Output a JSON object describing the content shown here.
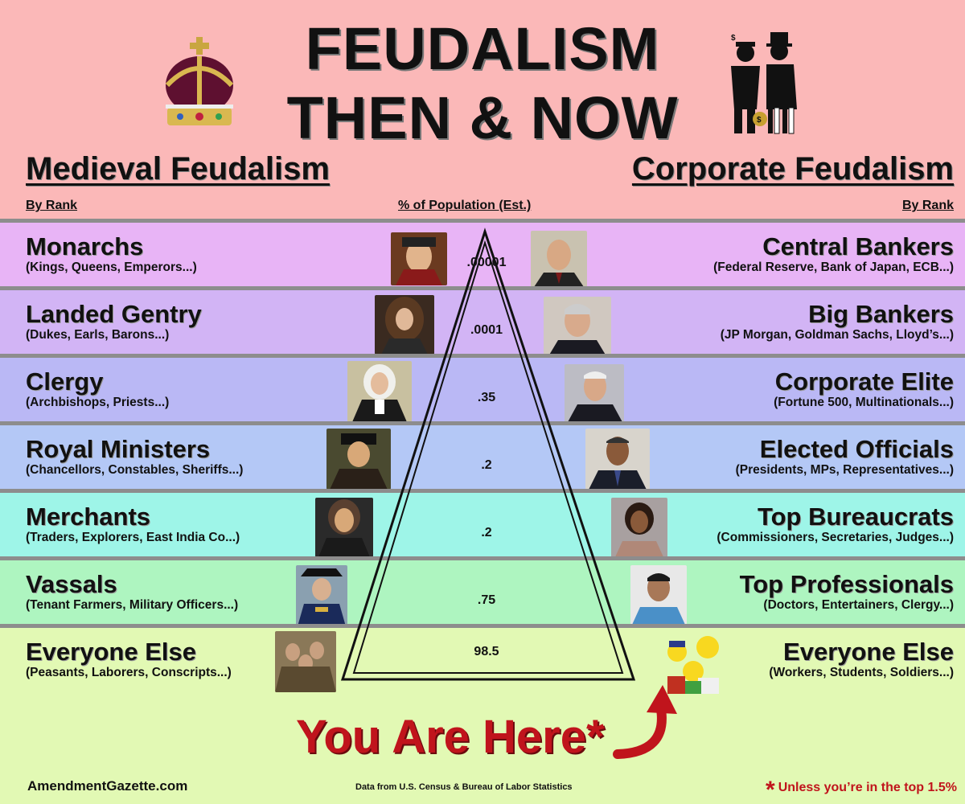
{
  "title": {
    "line1": "FEUDALISM",
    "line2": "THEN & NOW"
  },
  "columns": {
    "left_heading": "Medieval Feudalism",
    "right_heading": "Corporate Feudalism",
    "left_sub": "By Rank",
    "middle_sub": "% of Population (Est.)",
    "right_sub": "By Rank"
  },
  "ranks": [
    {
      "medieval": "Monarchs",
      "medieval_examples": "(Kings, Queens, Emperors...)",
      "percent": ".00001",
      "corporate": "Central Bankers",
      "corporate_examples": "(Federal Reserve, Bank of Japan, ECB...)",
      "color": "#e8b4f6"
    },
    {
      "medieval": "Landed Gentry",
      "medieval_examples": "(Dukes, Earls, Barons...)",
      "percent": ".0001",
      "corporate": "Big Bankers",
      "corporate_examples": "(JP Morgan, Goldman Sachs, Lloyd’s...)",
      "color": "#d2b4f5"
    },
    {
      "medieval": "Clergy",
      "medieval_examples": "(Archbishops, Priests...)",
      "percent": ".35",
      "corporate": "Corporate Elite",
      "corporate_examples": "(Fortune 500, Multinationals...)",
      "color": "#bab8f5"
    },
    {
      "medieval": "Royal Ministers",
      "medieval_examples": "(Chancellors, Constables, Sheriffs...)",
      "percent": ".2",
      "corporate": "Elected Officials",
      "corporate_examples": "(Presidents, MPs, Representatives...)",
      "color": "#b4c8f6"
    },
    {
      "medieval": "Merchants",
      "medieval_examples": "(Traders, Explorers, East India Co...)",
      "percent": ".2",
      "corporate": "Top Bureaucrats",
      "corporate_examples": "(Commissioners, Secretaries, Judges...)",
      "color": "#9ef5e8"
    },
    {
      "medieval": "Vassals",
      "medieval_examples": "(Tenant Farmers, Military Officers...)",
      "percent": ".75",
      "corporate": "Top Professionals",
      "corporate_examples": "(Doctors, Entertainers, Clergy...)",
      "color": "#aef5c0"
    },
    {
      "medieval": "Everyone Else",
      "medieval_examples": "(Peasants, Laborers, Conscripts...)",
      "percent": "98.5",
      "corporate": "Everyone Else",
      "corporate_examples": "(Workers, Students, Soldiers...)",
      "color": "#e2f9b4"
    }
  ],
  "you_are_here": "You Are Here*",
  "footer": {
    "site": "AmendmentGazette.com",
    "source": "Data from U.S. Census & Bureau of Labor Statistics",
    "footnote": "Unless you’re in the top 1.5%",
    "asterisk": "*"
  },
  "colors": {
    "header_bg": "#fbb8b8",
    "accent_red": "#c0141c",
    "divider": "#8d8d8d"
  }
}
